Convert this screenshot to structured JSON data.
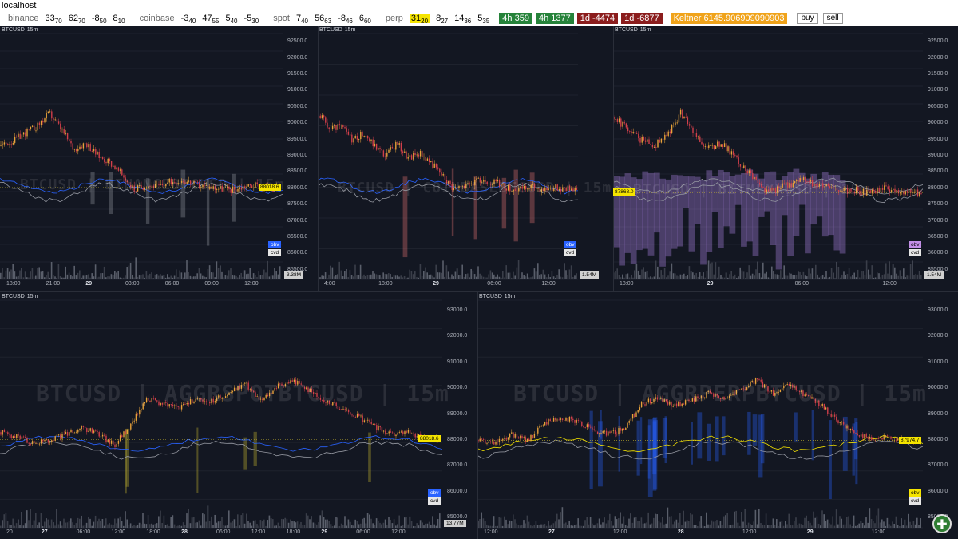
{
  "window": {
    "title": "localhost"
  },
  "ticker": {
    "groups": [
      {
        "name": "binance",
        "values": [
          [
            "33",
            "70"
          ],
          [
            "62",
            "70"
          ],
          [
            "-8",
            "50"
          ],
          [
            "8",
            "10"
          ]
        ]
      },
      {
        "name": "coinbase",
        "values": [
          [
            "-3",
            "40"
          ],
          [
            "47",
            "55"
          ],
          [
            "5",
            "40"
          ],
          [
            "-5",
            "30"
          ]
        ]
      },
      {
        "name": "spot",
        "values": [
          [
            "7",
            "40"
          ],
          [
            "56",
            "63"
          ],
          [
            "-8",
            "46"
          ],
          [
            "6",
            "60"
          ]
        ]
      },
      {
        "name": "perp",
        "values": [
          [
            "31",
            "20"
          ],
          [
            "8",
            "27"
          ],
          [
            "14",
            "36"
          ],
          [
            "5",
            "35"
          ]
        ]
      }
    ],
    "badges": [
      {
        "text": "4h 359",
        "color": "green"
      },
      {
        "text": "4h 1377",
        "color": "green"
      },
      {
        "text": "1d -4474",
        "color": "red"
      },
      {
        "text": "1d -6877",
        "color": "red"
      }
    ],
    "keltner": "Keltner 6145.906909090903",
    "buy_label": "buy",
    "sell_label": "sell"
  },
  "panes": [
    {
      "label": "BTCUSD",
      "tf": "15m",
      "watermark": "BTCUSD | BINANCEBTCUSD | 15m",
      "y_ticks": [
        "92500.0",
        "92000.0",
        "91500.0",
        "91000.0",
        "90500.0",
        "90000.0",
        "89500.0",
        "89000.0",
        "88500.0",
        "88000.0",
        "87500.0",
        "87000.0",
        "86500.0",
        "86000.0",
        "85500.0"
      ],
      "y_range": [
        85200,
        92750
      ],
      "price_tag": "88018.6",
      "x_ticks": [
        [
          "18:00",
          false
        ],
        [
          "21:00",
          false
        ],
        [
          "29",
          true
        ],
        [
          "03:00",
          false
        ],
        [
          "06:00",
          false
        ],
        [
          "09:00",
          false
        ],
        [
          "12:00",
          false
        ]
      ],
      "tags": {
        "obv": "obv",
        "cvd": "cvd",
        "vol": "3.38M"
      },
      "osc_color": "#9598a1",
      "cvd_color": "#2962ff",
      "seed": 11,
      "price_path": [
        89300,
        89450,
        89700,
        89900,
        90300,
        89800,
        89200,
        89400,
        89000,
        88800,
        88400,
        87950,
        88100,
        88050,
        88200,
        88250,
        88100,
        88050,
        88000,
        87950,
        88050,
        88100,
        87980,
        88020
      ]
    },
    {
      "label": "BTCUSD",
      "tf": "15m",
      "watermark": "BTCUSD | COINBASEBTCUSD | 15m",
      "y_ticks": [],
      "y_range": [
        85200,
        92750
      ],
      "price_tag": "",
      "x_ticks": [
        [
          "4:00",
          false
        ],
        [
          "18:00",
          false
        ],
        [
          "29",
          true
        ],
        [
          "06:00",
          false
        ],
        [
          "12:00",
          false
        ]
      ],
      "tags": {
        "obv": "obv",
        "cvd": "cvd",
        "vol": "1.54M"
      },
      "osc_color": "#e57373",
      "cvd_color": "#2962ff",
      "seed": 23,
      "price_path": [
        90300,
        89800,
        89900,
        89500,
        89700,
        89300,
        89000,
        89400,
        88900,
        89100,
        88800,
        88400,
        88000,
        88050,
        88200,
        88250,
        88150,
        88000,
        87950,
        88050,
        87980,
        88020,
        88000,
        88010
      ]
    },
    {
      "label": "BTCUSD",
      "tf": "15m",
      "watermark": "BTCUSD | BITMEXXUSD | 15m",
      "y_ticks": [
        "92500.0",
        "92000.0",
        "91500.0",
        "91000.0",
        "90500.0",
        "90000.0",
        "89500.0",
        "89000.0",
        "88500.0",
        "88000.0",
        "87500.0",
        "87000.0",
        "86500.0",
        "86000.0",
        "85500.0"
      ],
      "y_range": [
        85200,
        92750
      ],
      "price_tag": "87868.0",
      "x_ticks": [
        [
          "18:00",
          false
        ],
        [
          "29",
          true
        ],
        [
          "06:00",
          false
        ],
        [
          "12:00",
          false
        ]
      ],
      "tags": {
        "obv": "obv",
        "cvd": "cvd",
        "vol": "1.54M"
      },
      "osc_color": "#b388eb",
      "cvd_color": "#9598a1",
      "seed": 37,
      "price_path": [
        90200,
        89800,
        89500,
        89300,
        89600,
        90300,
        89700,
        89200,
        89400,
        89000,
        88500,
        88000,
        87950,
        88100,
        88250,
        88150,
        88000,
        87900,
        87950,
        87850,
        88000,
        87900,
        87870,
        87868
      ]
    },
    {
      "label": "BTCUSD",
      "tf": "15m",
      "watermark": "BTCUSD | AGGRSPOTBTCUSD | 15m",
      "y_ticks": [
        "93000.0",
        "92000.0",
        "91000.0",
        "90000.0",
        "89000.0",
        "88000.0",
        "87000.0",
        "86000.0",
        "85000.0"
      ],
      "y_range": [
        84600,
        93400
      ],
      "price_tag": "88018.6",
      "x_ticks": [
        [
          "20",
          false
        ],
        [
          "27",
          true
        ],
        [
          "06:00",
          false
        ],
        [
          "12:00",
          false
        ],
        [
          "18:00",
          false
        ],
        [
          "28",
          true
        ],
        [
          "06:00",
          false
        ],
        [
          "12:00",
          false
        ],
        [
          "18:00",
          false
        ],
        [
          "29",
          true
        ],
        [
          "06:00",
          false
        ],
        [
          "12:00",
          false
        ]
      ],
      "tags": {
        "obv": "obv",
        "cvd": "cvd",
        "vol": "13.77M"
      },
      "osc_color": "#c9b72d",
      "cvd_color": "#2962ff",
      "seed": 53,
      "price_path": [
        88300,
        88100,
        87900,
        88000,
        88200,
        88500,
        88200,
        87800,
        88600,
        89600,
        89400,
        89200,
        89600,
        89500,
        89800,
        90200,
        89500,
        90100,
        90300,
        89900,
        89500,
        89200,
        88900,
        88500,
        88200,
        88300,
        88050,
        88020
      ]
    },
    {
      "label": "BTCUSD",
      "tf": "15m",
      "watermark": "BTCUSD | AGGRPERPBTCUSD | 15m",
      "y_ticks": [
        "93000.0",
        "92000.0",
        "91000.0",
        "90000.0",
        "89000.0",
        "88000.0",
        "87000.0",
        "86000.0",
        "85000.0"
      ],
      "y_range": [
        84600,
        93400
      ],
      "price_tag": "87974.7",
      "x_ticks": [
        [
          "12:00",
          false
        ],
        [
          "27",
          true
        ],
        [
          "12:00",
          false
        ],
        [
          "28",
          true
        ],
        [
          "12:00",
          false
        ],
        [
          "29",
          true
        ],
        [
          "12:00",
          false
        ]
      ],
      "tags": {
        "obv": "obv",
        "cvd": "cvd",
        "vol": ""
      },
      "osc_color": "#2962ff",
      "cvd_color": "#f5e400",
      "seed": 71,
      "price_path": [
        88000,
        87900,
        88200,
        88000,
        88600,
        88900,
        88700,
        88400,
        88200,
        88500,
        89400,
        89600,
        89300,
        89500,
        89800,
        89600,
        89900,
        90300,
        89800,
        90100,
        89700,
        89300,
        88700,
        88300,
        88000,
        88100,
        87980,
        87975
      ]
    }
  ]
}
